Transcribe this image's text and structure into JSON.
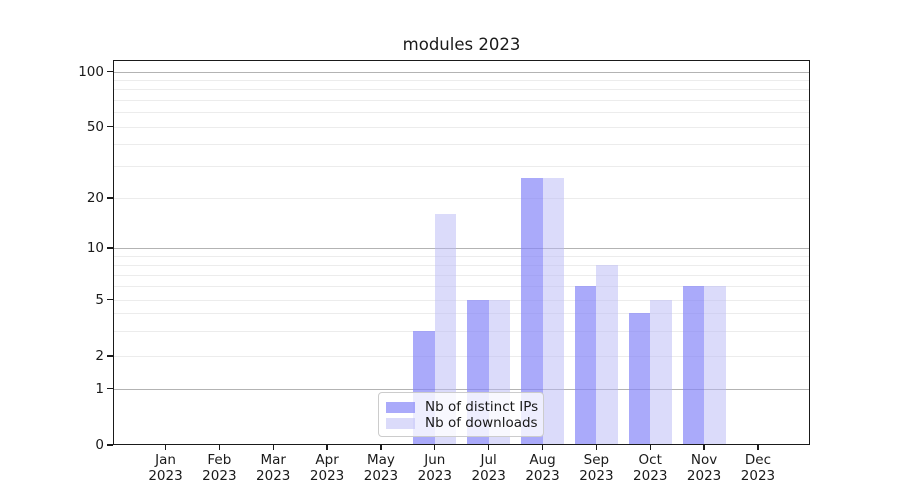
{
  "chart_data": {
    "type": "bar",
    "title": "modules 2023",
    "x": {
      "months": [
        "Jan",
        "Feb",
        "Mar",
        "Apr",
        "May",
        "Jun",
        "Jul",
        "Aug",
        "Sep",
        "Oct",
        "Nov",
        "Dec"
      ],
      "year": "2023"
    },
    "series": [
      {
        "name": "Nb of distinct IPs",
        "color": "rgba(134,134,248,0.7)",
        "values": [
          0,
          0,
          0,
          0,
          0,
          3,
          5,
          26,
          6,
          4,
          6,
          0
        ]
      },
      {
        "name": "Nb of downloads",
        "color": "rgba(183,183,245,0.5)",
        "values": [
          0,
          0,
          0,
          0,
          0,
          16,
          5,
          26,
          8,
          5,
          6,
          0
        ]
      }
    ],
    "y_axis": {
      "scale": "symlog",
      "ticks": [
        0,
        1,
        2,
        5,
        10,
        20,
        50,
        100
      ],
      "major_gridlines": [
        1,
        10,
        100
      ],
      "minor_gridlines": [
        2,
        3,
        4,
        5,
        6,
        7,
        8,
        9,
        20,
        30,
        40,
        50,
        60,
        70,
        80,
        90
      ],
      "ylim": [
        0,
        115
      ]
    },
    "xlabel": "",
    "ylabel": "",
    "legend": {
      "position": "lower center",
      "entries": [
        "Nb of distinct IPs",
        "Nb of downloads"
      ]
    },
    "grid": true
  },
  "colors": {
    "background": "#ffffff",
    "major_grid": "#b3b3b3",
    "minor_grid": "#ececec",
    "spine": "#1a1a1a",
    "text": "#1a1a1a",
    "legend_border": "#cccccc",
    "legend_bg": "rgba(255,255,255,0.8)"
  }
}
